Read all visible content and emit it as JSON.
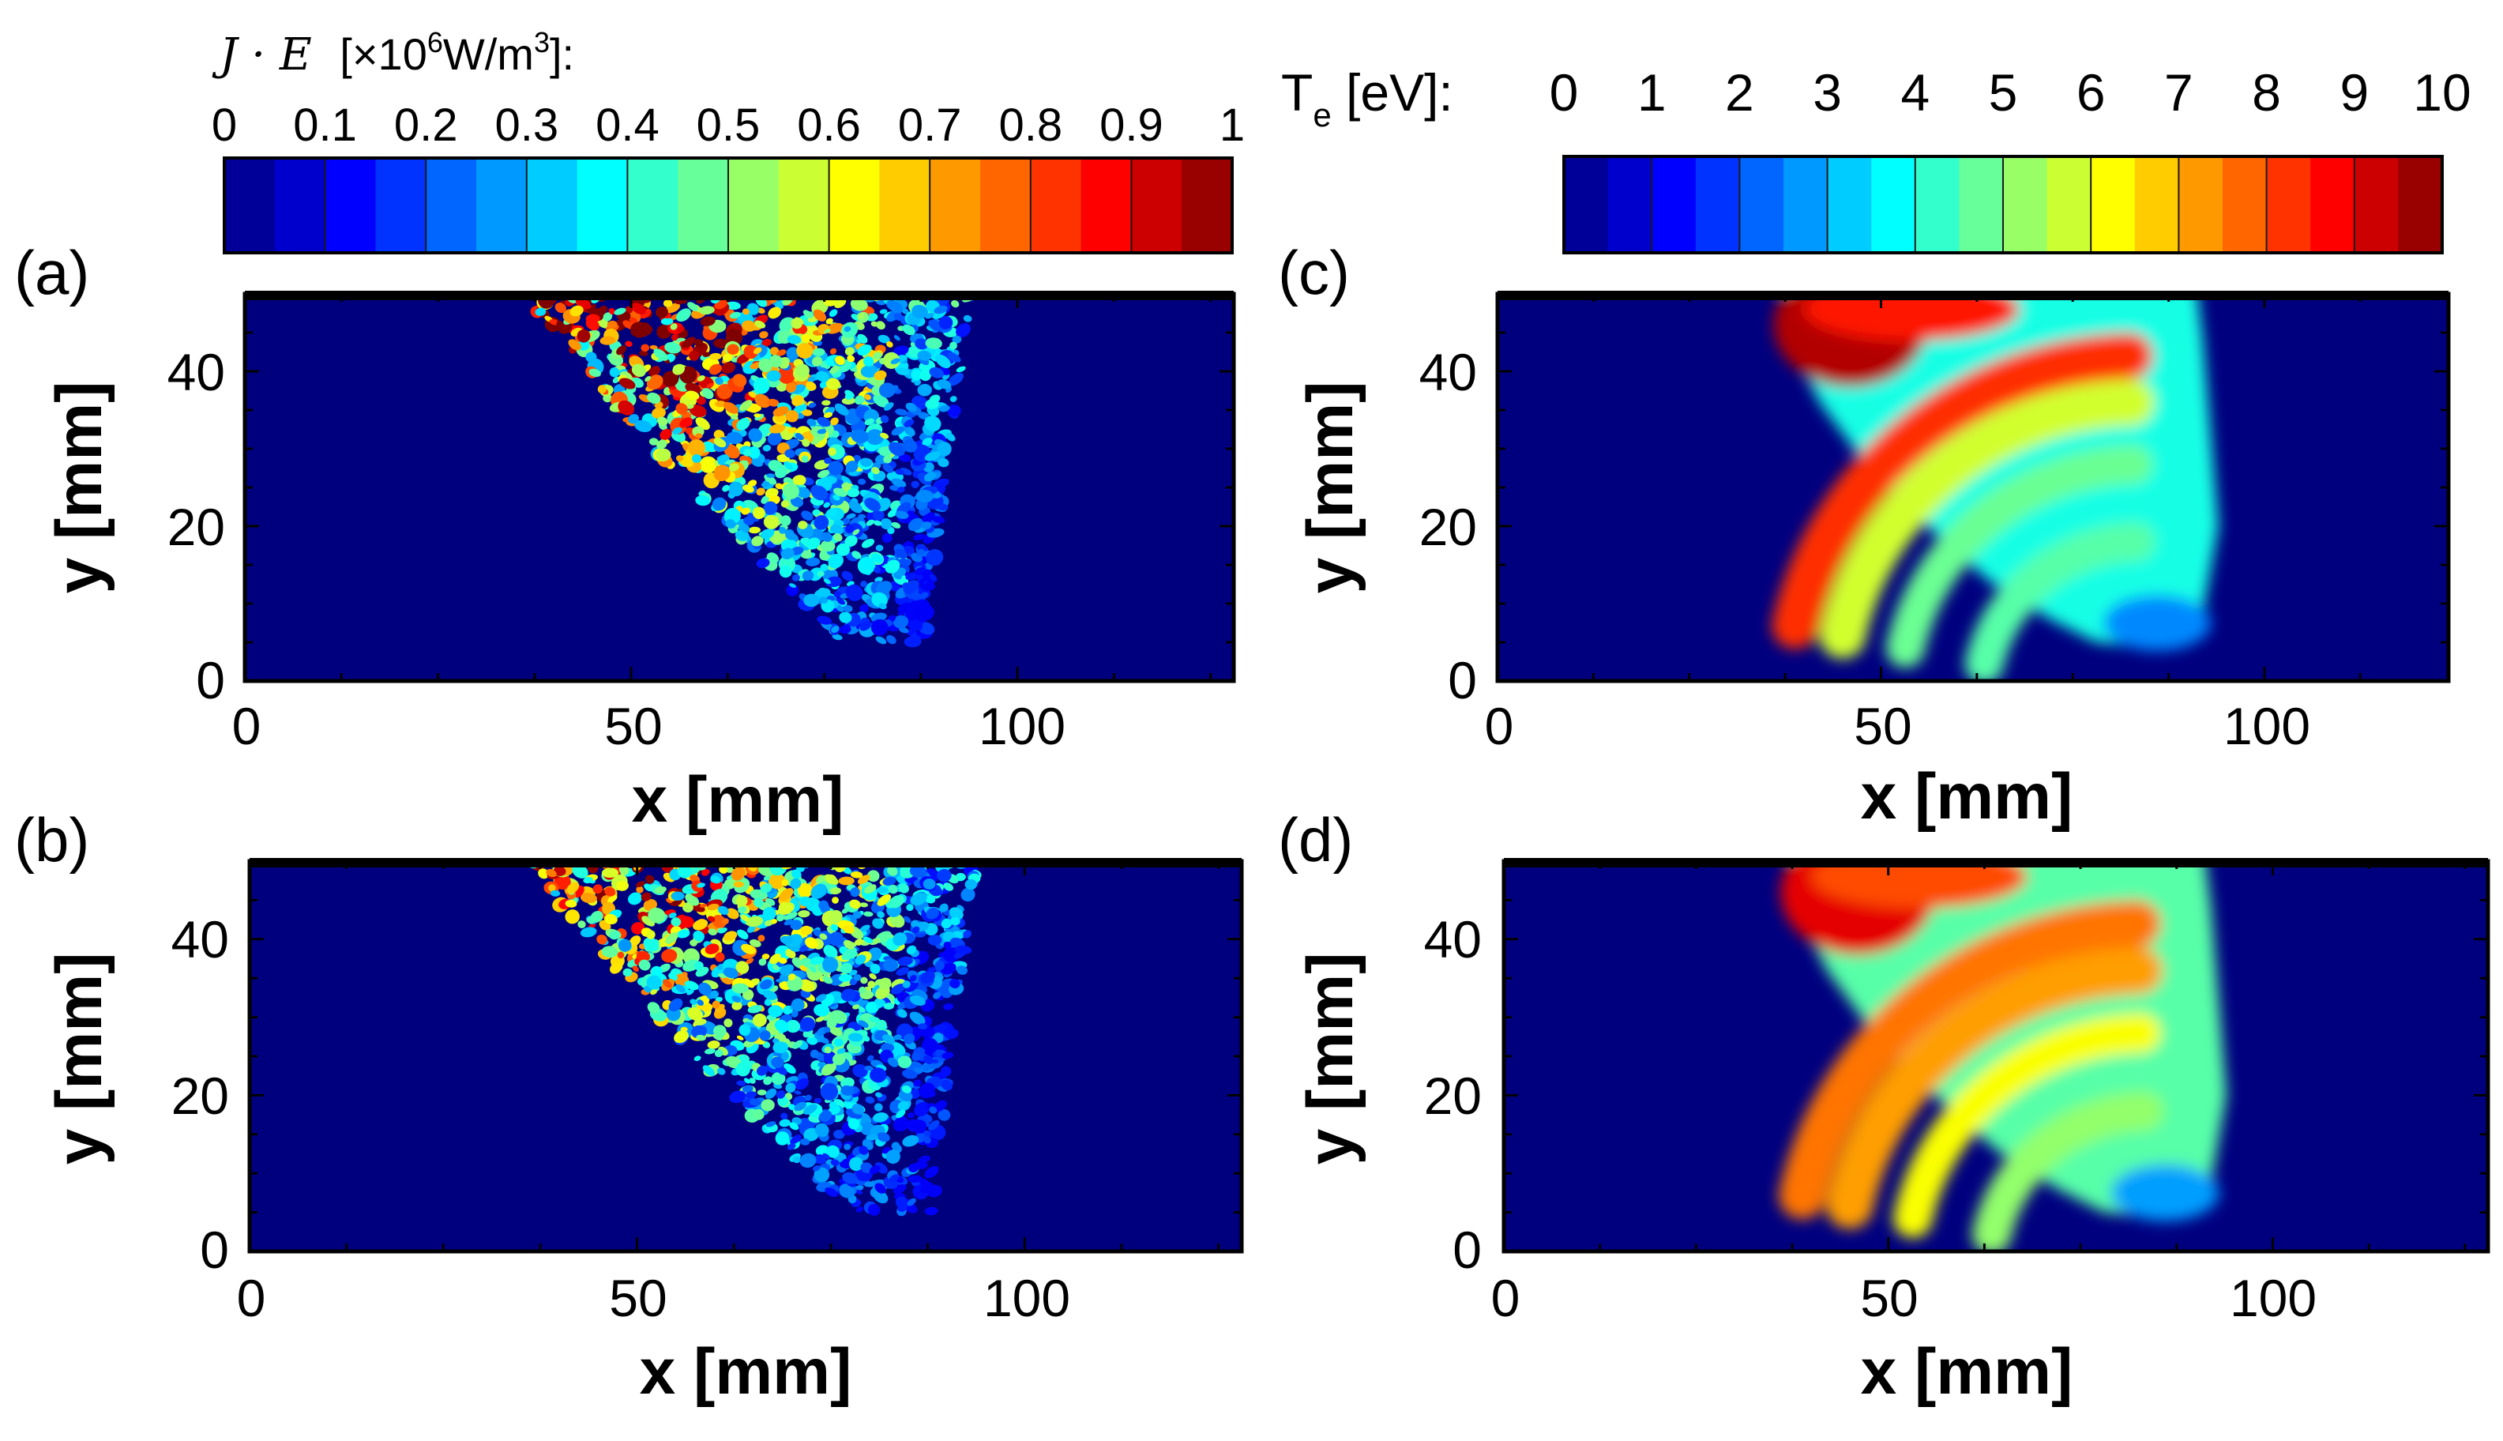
{
  "colormap": [
    "#00007f",
    "#0000ff",
    "#007fff",
    "#00ffff",
    "#7fff7f",
    "#ffff00",
    "#ff7f00",
    "#ff0000",
    "#7f0000"
  ],
  "colorbars": [
    {
      "id": "je",
      "title_symbol": "J · E",
      "title_units_prefix": "[×10",
      "title_units_exp": "6",
      "title_units_mid": "W/m",
      "title_units_exp2": "3",
      "title_units_suffix": "]:",
      "min": 0,
      "max": 1,
      "levels": 20,
      "tick_labels": [
        "0",
        "0.1",
        "0.2",
        "0.3",
        "0.4",
        "0.5",
        "0.6",
        "0.7",
        "0.8",
        "0.9",
        "1"
      ]
    },
    {
      "id": "te",
      "title_main": "T",
      "title_sub": "e",
      "title_rest": " [eV]:",
      "min": 0,
      "max": 10,
      "levels": 20,
      "tick_labels": [
        "0",
        "1",
        "2",
        "3",
        "4",
        "5",
        "6",
        "7",
        "8",
        "9",
        "10"
      ]
    }
  ],
  "chart_data": [
    {
      "type": "heatmap",
      "panel_label": "(a)",
      "quantity": "J·E",
      "xlabel": "x [mm]",
      "ylabel": "y [mm]",
      "xlim": [
        0,
        128
      ],
      "ylim": [
        0,
        50
      ],
      "xticks": [
        0,
        50,
        100
      ],
      "yticks": [
        0,
        20,
        40
      ],
      "xtick_labels": [
        "0",
        "50",
        "100"
      ],
      "ytick_labels": [
        "0",
        "20",
        "40"
      ],
      "field": "noisy_plume",
      "intensity": 1.0,
      "colorbar": "je"
    },
    {
      "type": "heatmap",
      "panel_label": "(b)",
      "quantity": "J·E",
      "xlabel": "x [mm]",
      "ylabel": "y [mm]",
      "xlim": [
        0,
        128
      ],
      "ylim": [
        0,
        50
      ],
      "xticks": [
        0,
        50,
        100
      ],
      "yticks": [
        0,
        20,
        40
      ],
      "xtick_labels": [
        "0",
        "50",
        "100"
      ],
      "ytick_labels": [
        "0",
        "20",
        "40"
      ],
      "field": "noisy_plume",
      "intensity": 0.85,
      "colorbar": "je"
    },
    {
      "type": "heatmap",
      "panel_label": "(c)",
      "quantity": "Te [eV]",
      "xlabel": "x [mm]",
      "ylabel": "y [mm]",
      "xlim": [
        0,
        124
      ],
      "ylim": [
        0,
        50
      ],
      "xticks": [
        0,
        50,
        100
      ],
      "yticks": [
        0,
        20,
        40
      ],
      "xtick_labels": [
        "0",
        "50",
        "100"
      ],
      "ytick_labels": [
        "0",
        "20",
        "40"
      ],
      "field": "smooth_plume",
      "peak_eV": 9.5,
      "band1_center_eV": 8.3,
      "band1_x_mm": 62,
      "band2_center_eV": 4.8,
      "outer_eV": 4.0,
      "core_eV": 2.6,
      "colorbar": "te"
    },
    {
      "type": "heatmap",
      "panel_label": "(d)",
      "quantity": "Te [eV]",
      "xlabel": "x [mm]",
      "ylabel": "y [mm]",
      "xlim": [
        0,
        128
      ],
      "ylim": [
        0,
        50
      ],
      "xticks": [
        0,
        50,
        100
      ],
      "yticks": [
        0,
        20,
        40
      ],
      "xtick_labels": [
        "0",
        "50",
        "100"
      ],
      "ytick_labels": [
        "0",
        "20",
        "40"
      ],
      "field": "smooth_plume",
      "peak_eV": 9.0,
      "band1_center_eV": 7.6,
      "band1_x_mm": 60,
      "band2_center_eV": 6.2,
      "outer_eV": 4.6,
      "core_eV": 2.8,
      "colorbar": "te"
    }
  ]
}
